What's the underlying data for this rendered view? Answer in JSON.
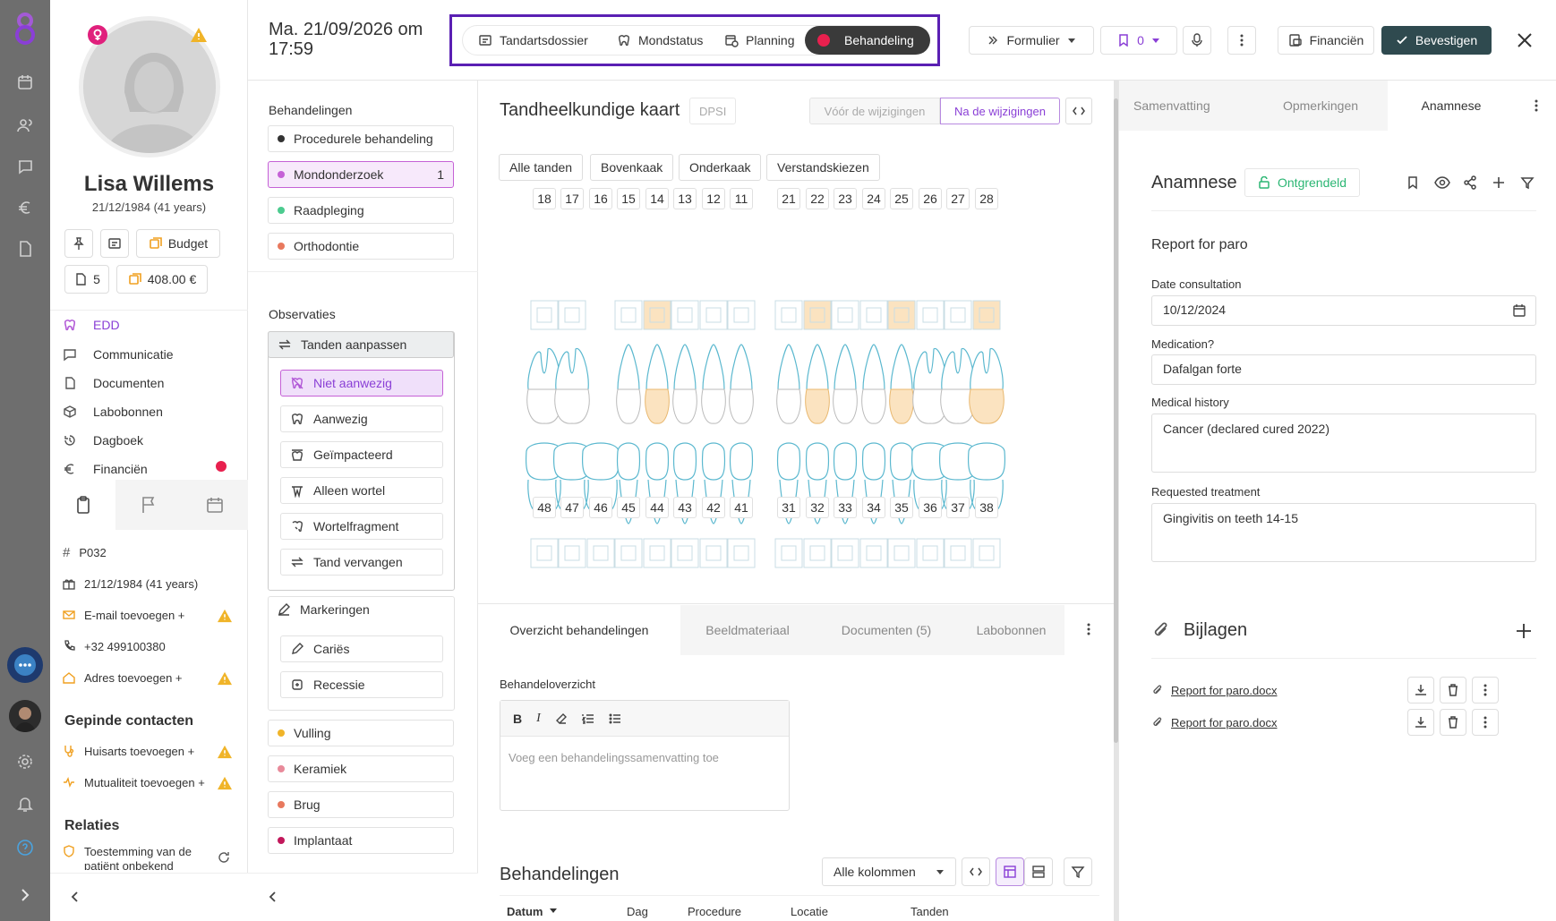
{
  "app": {
    "logo": "app-logo",
    "accent": "#7b3fe4"
  },
  "rail": {
    "icons": [
      "calendar-icon",
      "users-icon",
      "chat-icon",
      "euro-icon",
      "document-icon"
    ],
    "bottom_icons": [
      "support-chat-icon",
      "user-avatar",
      "settings-icon",
      "bell-icon",
      "help-icon",
      "expand-icon"
    ]
  },
  "patient": {
    "name": "Lisa Willems",
    "birth": "21/12/1984 (41 years)",
    "budget_label": "Budget",
    "count": "5",
    "amount": "408.00 €",
    "nav": [
      {
        "label": "EDD",
        "icon": "tooth-icon",
        "active": true
      },
      {
        "label": "Communicatie",
        "icon": "chat-icon"
      },
      {
        "label": "Documenten",
        "icon": "document-icon"
      },
      {
        "label": "Labobonnen",
        "icon": "cube-icon"
      },
      {
        "label": "Dagboek",
        "icon": "history-icon"
      },
      {
        "label": "Financiën",
        "icon": "euro-icon",
        "badge": true
      }
    ],
    "info": {
      "id": "P032",
      "birth": "21/12/1984 (41 years)",
      "email_add": "E-mail toevoegen +",
      "phone": "+32 499100380",
      "address_add": "Adres toevoegen +"
    },
    "pinned_title": "Gepinde contacten",
    "pinned": [
      "Huisarts toevoegen +",
      "Mutualiteit toevoegen +"
    ],
    "relations_title": "Relaties",
    "relations": [
      "Toestemming van de patiënt onbekend"
    ]
  },
  "header": {
    "date": "Ma. 21/09/2026 om",
    "time": "17:59",
    "tabs": [
      {
        "label": "Tandartsdossier",
        "icon": "dossier-icon"
      },
      {
        "label": "Mondstatus",
        "icon": "tooth-icon"
      },
      {
        "label": "Planning",
        "icon": "calendar-clock-icon"
      },
      {
        "label": "Behandeling",
        "icon": "record-dot-icon",
        "active": true
      }
    ],
    "form_label": "Formulier",
    "bookmark_count": "0",
    "finance_label": "Financiën",
    "confirm_label": "Bevestigen"
  },
  "treatments": {
    "title": "Behandelingen",
    "items": [
      {
        "label": "Procedurele behandeling",
        "color": "#333333"
      },
      {
        "label": "Mondonderzoek",
        "color": "#c561d6",
        "count": "1",
        "active": true
      },
      {
        "label": "Raadpleging",
        "color": "#4ccb8f"
      },
      {
        "label": "Orthodontie",
        "color": "#e8795e"
      }
    ],
    "obs_title": "Observaties",
    "obs_group": "Tanden aanpassen",
    "obs_items": [
      {
        "label": "Niet aanwezig",
        "icon": "tooth-off-icon",
        "active": true
      },
      {
        "label": "Aanwezig",
        "icon": "tooth-icon"
      },
      {
        "label": "Geïmpacteerd",
        "icon": "tooth-impacted-icon"
      },
      {
        "label": "Alleen wortel",
        "icon": "root-icon"
      },
      {
        "label": "Wortelfragment",
        "icon": "root-fragment-icon"
      },
      {
        "label": "Tand vervangen",
        "icon": "swap-icon"
      }
    ],
    "mark_title": "Markeringen",
    "mark_items": [
      {
        "label": "Cariës",
        "icon": "pencil-icon"
      },
      {
        "label": "Recessie",
        "icon": "recession-icon"
      }
    ],
    "more": [
      {
        "label": "Vulling",
        "color": "#f0b429"
      },
      {
        "label": "Keramiek",
        "color": "#e88a9a"
      },
      {
        "label": "Brug",
        "color": "#e8795e"
      },
      {
        "label": "Implantaat",
        "color": "#c2185b"
      }
    ]
  },
  "chart": {
    "title": "Tandheelkundige kaart",
    "dpsi": "DPSI",
    "before": "Vóór de wijzigingen",
    "after": "Na de wijzigingen",
    "filters": [
      "Alle tanden",
      "Bovenkaak",
      "Onderkaak",
      "Verstandskiezen"
    ],
    "upper_left": [
      "18",
      "17",
      "16",
      "15",
      "14",
      "13",
      "12",
      "11"
    ],
    "upper_right": [
      "21",
      "22",
      "23",
      "24",
      "25",
      "26",
      "27",
      "28"
    ],
    "lower_left": [
      "48",
      "47",
      "46",
      "45",
      "44",
      "43",
      "42",
      "41"
    ],
    "lower_right": [
      "31",
      "32",
      "33",
      "34",
      "35",
      "36",
      "37",
      "38"
    ],
    "missing_upper_left": [
      "16"
    ],
    "highlighted_upper": [
      "14",
      "22",
      "25",
      "28"
    ],
    "highlight_color": "#fbe3c0",
    "tooth_color": "#5bb8cf"
  },
  "bottom": {
    "tabs": [
      "Overzicht behandelingen",
      "Beeldmateriaal",
      "Documenten (5)",
      "Labobonnen"
    ],
    "overview_label": "Behandeloverzicht",
    "editor_placeholder": "Voeg een behandelingssamenvatting toe",
    "treatments_title": "Behandelingen",
    "columns_select": "Alle kolommen",
    "table_columns": [
      "Datum",
      "Dag",
      "Procedure",
      "Locatie",
      "Tanden"
    ]
  },
  "right": {
    "tabs": [
      "Samenvatting",
      "Opmerkingen",
      "Anamnese"
    ],
    "title": "Anamnese",
    "unlock": "Ontgrendeld",
    "report": "Report for paro",
    "fields": [
      {
        "label": "Date consultation",
        "value": "10/12/2024"
      },
      {
        "label": "Medication?",
        "value": "Dafalgan forte"
      },
      {
        "label": "Medical history",
        "value": "Cancer (declared cured 2022)"
      },
      {
        "label": "Requested treatment",
        "value": "Gingivitis on teeth 14-15"
      }
    ],
    "attachments_title": "Bijlagen",
    "attachments": [
      "Report for paro.docx",
      "Report for paro.docx"
    ]
  }
}
